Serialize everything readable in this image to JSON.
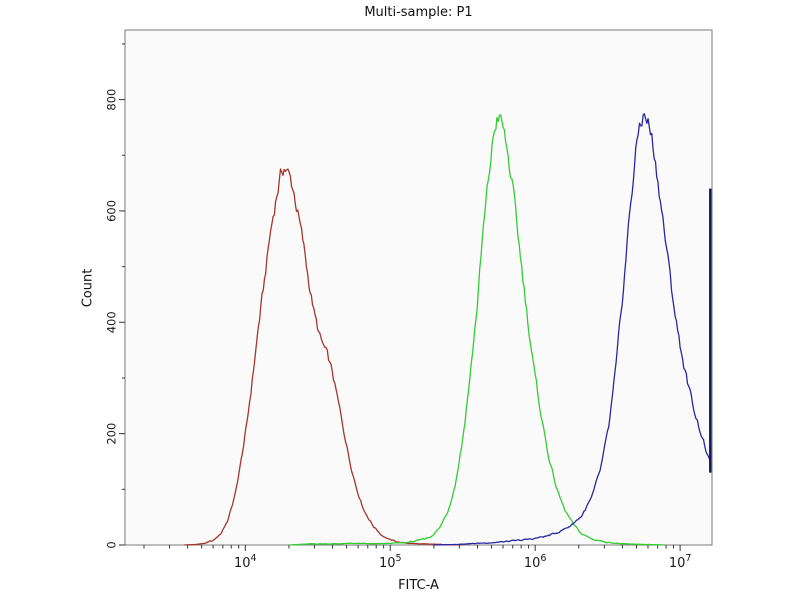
{
  "chart_data": {
    "type": "line",
    "title": "Multi-sample: P1",
    "xlabel": "FITC-A",
    "ylabel": "Count",
    "x_scale": "log10",
    "xlim_log10": [
      3.17,
      7.22
    ],
    "ylim": [
      0,
      925
    ],
    "grid": false,
    "legend": "none",
    "y_major_ticks": [
      {
        "value": 0,
        "label": "0"
      },
      {
        "value": 200,
        "label": "200"
      },
      {
        "value": 400,
        "label": "400"
      },
      {
        "value": 600,
        "label": "600"
      },
      {
        "value": 800,
        "label": "800"
      }
    ],
    "y_minor_step": 100,
    "x_major_ticks": [
      {
        "log10": 4,
        "base": "10",
        "exp": "4"
      },
      {
        "log10": 5,
        "base": "10",
        "exp": "5"
      },
      {
        "log10": 6,
        "base": "10",
        "exp": "6"
      },
      {
        "log10": 7,
        "base": "10",
        "exp": "7"
      }
    ],
    "series": [
      {
        "name": "red",
        "color": "#a6352b",
        "peak_log10x": 4.27,
        "peak_count": 680,
        "points": [
          [
            3.58,
            0
          ],
          [
            3.66,
            1
          ],
          [
            3.72,
            3
          ],
          [
            3.78,
            8
          ],
          [
            3.83,
            20
          ],
          [
            3.88,
            45
          ],
          [
            3.93,
            90
          ],
          [
            3.97,
            150
          ],
          [
            4.01,
            215
          ],
          [
            4.05,
            300
          ],
          [
            4.09,
            390
          ],
          [
            4.13,
            470
          ],
          [
            4.17,
            555
          ],
          [
            4.21,
            620
          ],
          [
            4.24,
            660
          ],
          [
            4.27,
            680
          ],
          [
            4.3,
            665
          ],
          [
            4.33,
            640
          ],
          [
            4.36,
            600
          ],
          [
            4.4,
            540
          ],
          [
            4.44,
            470
          ],
          [
            4.48,
            410
          ],
          [
            4.52,
            368
          ],
          [
            4.56,
            345
          ],
          [
            4.6,
            310
          ],
          [
            4.64,
            258
          ],
          [
            4.68,
            205
          ],
          [
            4.72,
            152
          ],
          [
            4.77,
            100
          ],
          [
            4.82,
            62
          ],
          [
            4.88,
            35
          ],
          [
            4.94,
            18
          ],
          [
            5.0,
            9
          ],
          [
            5.08,
            4
          ],
          [
            5.2,
            2
          ],
          [
            5.35,
            1
          ],
          [
            5.5,
            0
          ]
        ]
      },
      {
        "name": "green",
        "color": "#33cc33",
        "peak_log10x": 5.74,
        "peak_count": 772,
        "points": [
          [
            4.3,
            0
          ],
          [
            4.45,
            2
          ],
          [
            4.6,
            2
          ],
          [
            4.75,
            3
          ],
          [
            4.9,
            2
          ],
          [
            5.0,
            3
          ],
          [
            5.1,
            4
          ],
          [
            5.2,
            8
          ],
          [
            5.28,
            15
          ],
          [
            5.34,
            30
          ],
          [
            5.4,
            62
          ],
          [
            5.45,
            110
          ],
          [
            5.5,
            190
          ],
          [
            5.55,
            300
          ],
          [
            5.6,
            430
          ],
          [
            5.64,
            560
          ],
          [
            5.68,
            660
          ],
          [
            5.71,
            730
          ],
          [
            5.74,
            772
          ],
          [
            5.77,
            758
          ],
          [
            5.8,
            718
          ],
          [
            5.84,
            650
          ],
          [
            5.88,
            560
          ],
          [
            5.92,
            470
          ],
          [
            5.96,
            380
          ],
          [
            6.0,
            300
          ],
          [
            6.05,
            220
          ],
          [
            6.1,
            150
          ],
          [
            6.15,
            100
          ],
          [
            6.2,
            65
          ],
          [
            6.26,
            38
          ],
          [
            6.32,
            20
          ],
          [
            6.4,
            10
          ],
          [
            6.5,
            5
          ],
          [
            6.6,
            2
          ],
          [
            6.75,
            1
          ],
          [
            6.9,
            0
          ]
        ]
      },
      {
        "name": "blue",
        "color": "#2828a0",
        "peak_log10x": 6.75,
        "peak_count": 773,
        "points": [
          [
            5.3,
            0
          ],
          [
            5.45,
            1
          ],
          [
            5.6,
            3
          ],
          [
            5.75,
            5
          ],
          [
            5.88,
            8
          ],
          [
            5.98,
            11
          ],
          [
            6.08,
            16
          ],
          [
            6.16,
            23
          ],
          [
            6.24,
            34
          ],
          [
            6.32,
            52
          ],
          [
            6.39,
            85
          ],
          [
            6.45,
            135
          ],
          [
            6.51,
            215
          ],
          [
            6.56,
            325
          ],
          [
            6.61,
            465
          ],
          [
            6.65,
            590
          ],
          [
            6.69,
            695
          ],
          [
            6.72,
            755
          ],
          [
            6.75,
            773
          ],
          [
            6.78,
            758
          ],
          [
            6.81,
            725
          ],
          [
            6.84,
            668
          ],
          [
            6.87,
            610
          ],
          [
            6.9,
            545
          ],
          [
            6.94,
            462
          ],
          [
            6.98,
            390
          ],
          [
            7.02,
            330
          ],
          [
            7.06,
            282
          ],
          [
            7.1,
            240
          ],
          [
            7.14,
            205
          ],
          [
            7.17,
            178
          ],
          [
            7.2,
            152
          ],
          [
            7.215,
            140
          ]
        ],
        "edge_spike": {
          "log10x": 7.208,
          "count_bottom": 130,
          "count_top": 640,
          "color": "#16165e"
        }
      }
    ]
  }
}
